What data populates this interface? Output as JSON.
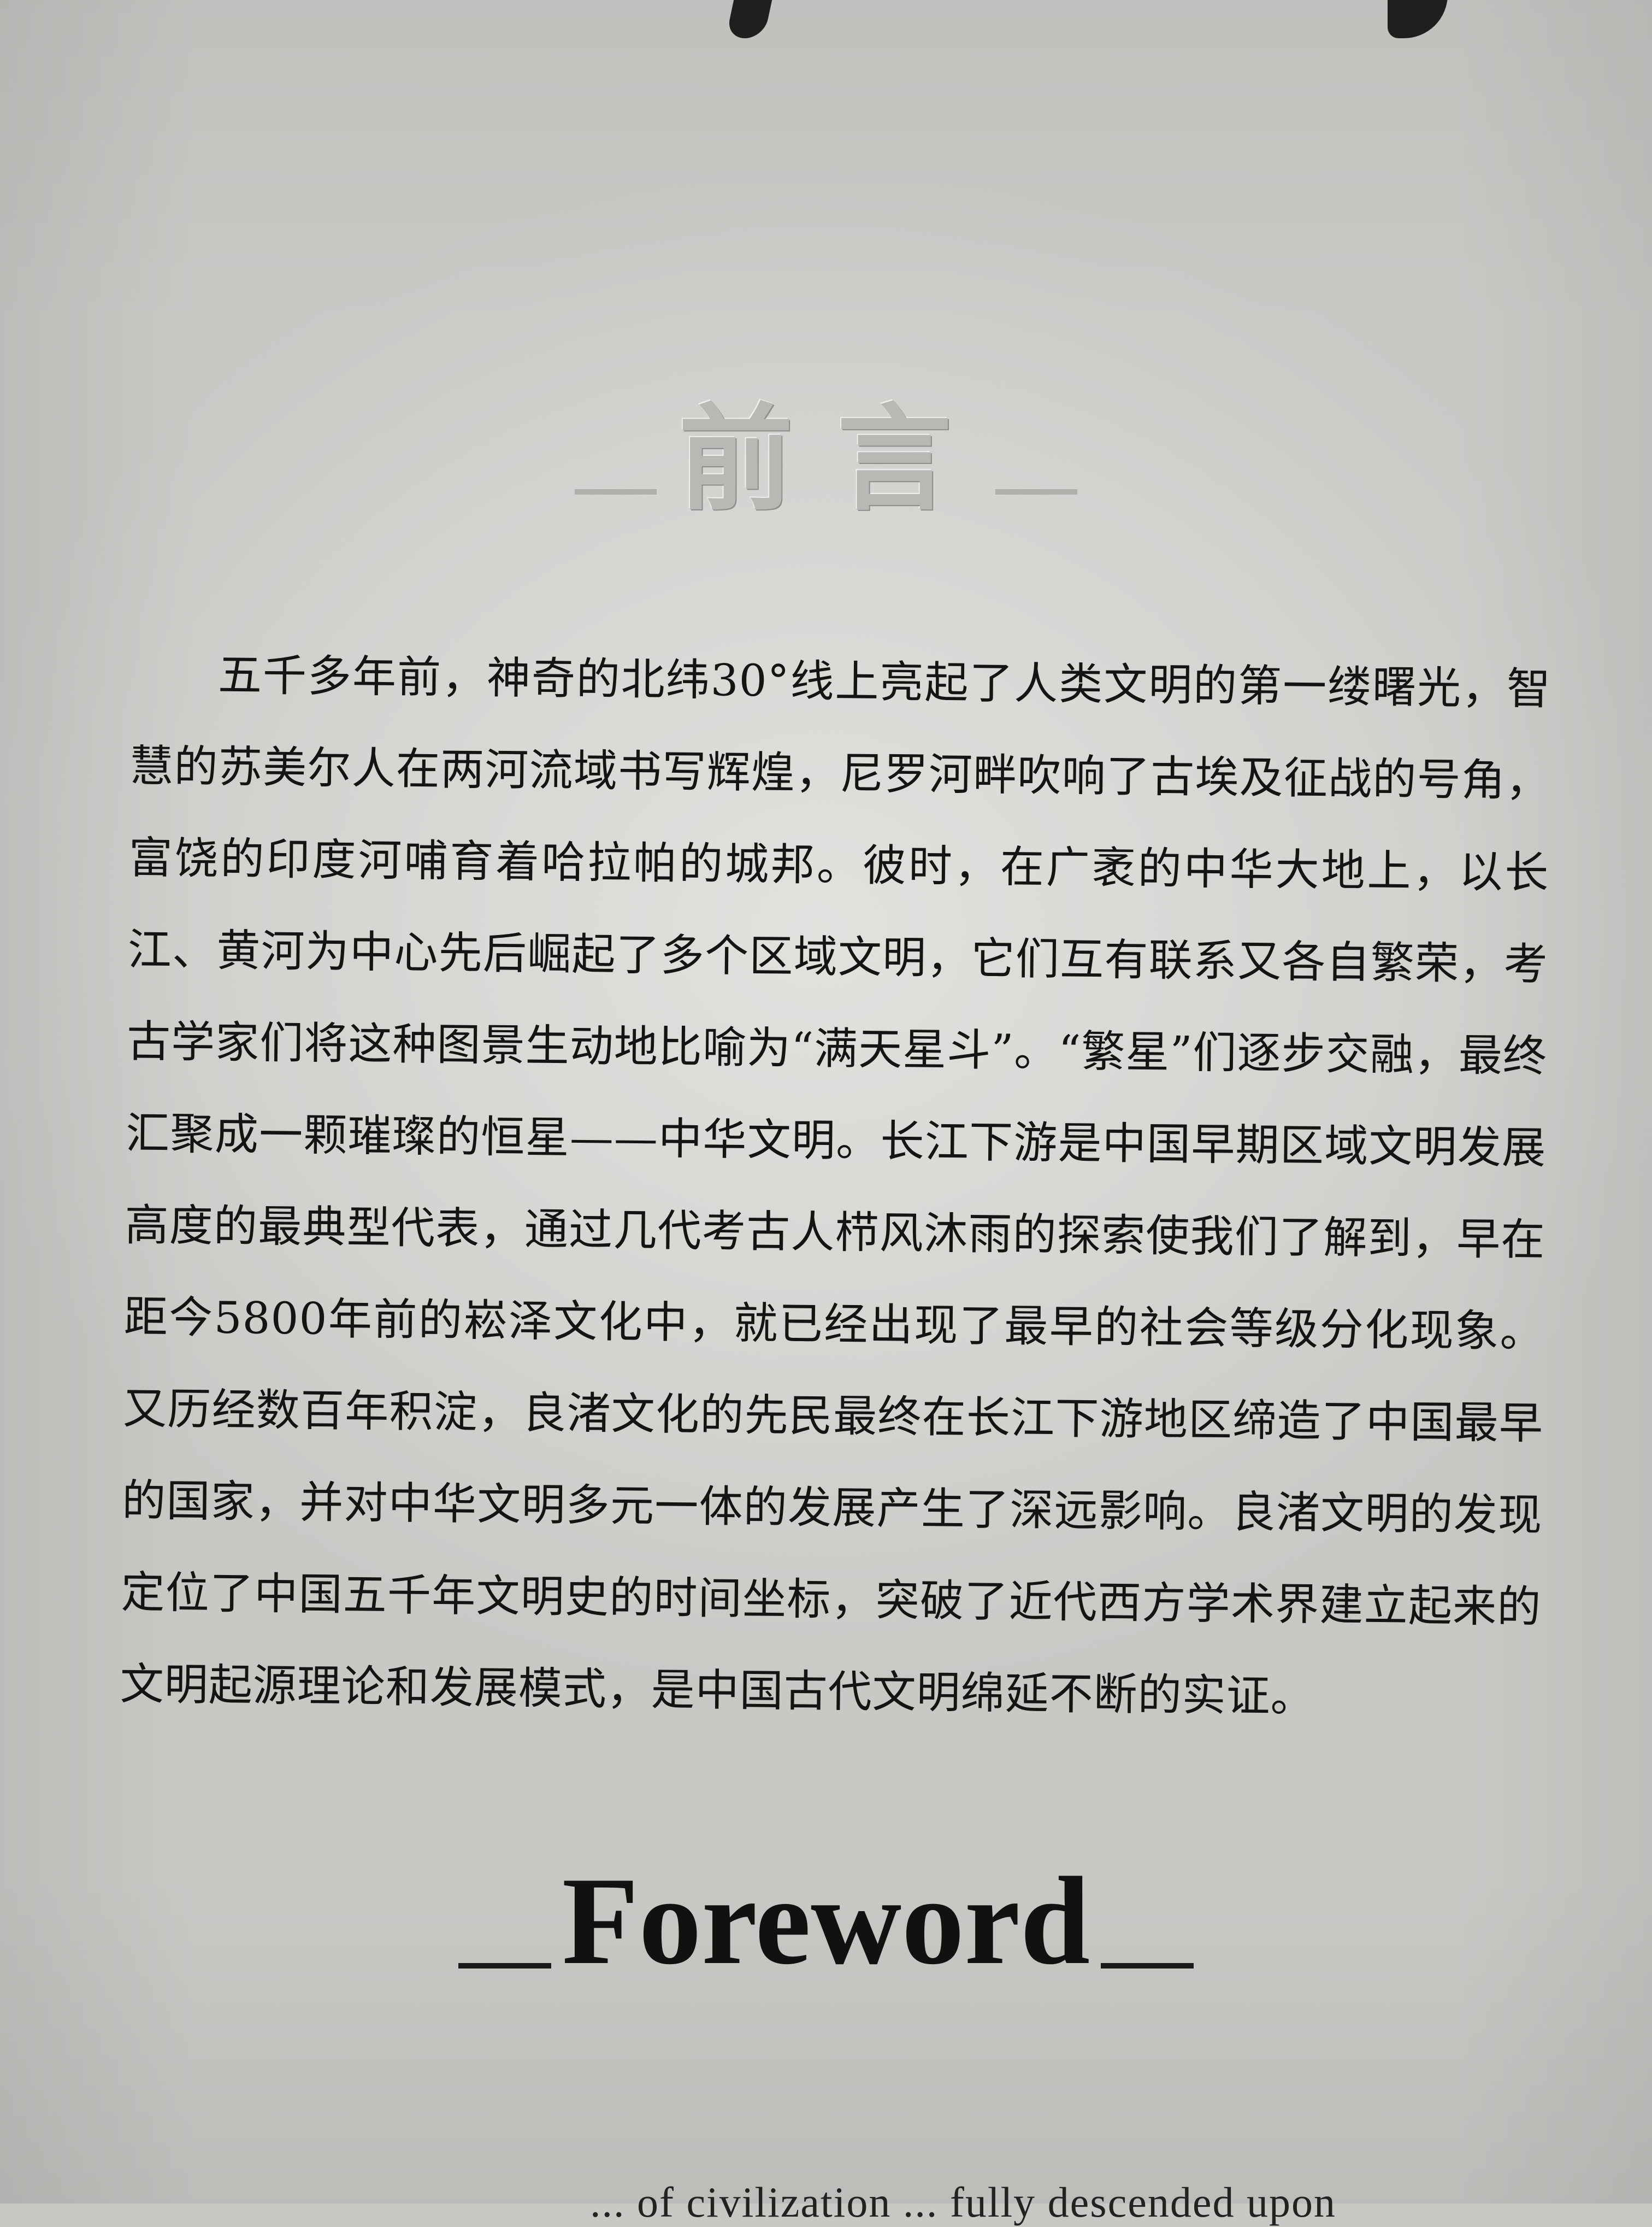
{
  "title_cn": "前言",
  "paragraph_cn": "五千多年前，神奇的北纬30°线上亮起了人类文明的第一缕曙光，智慧的苏美尔人在两河流域书写辉煌，尼罗河畔吹响了古埃及征战的号角，富饶的印度河哺育着哈拉帕的城邦。彼时，在广袤的中华大地上，以长江、黄河为中心先后崛起了多个区域文明，它们互有联系又各自繁荣，考古学家们将这种图景生动地比喻为“满天星斗”。“繁星”们逐步交融，最终汇聚成一颗璀璨的恒星——中华文明。长江下游是中国早期区域文明发展高度的最典型代表，通过几代考古人栉风沐雨的探索使我们了解到，早在距今5800年前的崧泽文化中，就已经出现了最早的社会等级分化现象。又历经数百年积淀，良渚文化的先民最终在长江下游地区缔造了中国最早的国家，并对中华文明多元一体的发展产生了深远影响。良渚文明的发现定位了中国五千年文明史的时间坐标，突破了近代西方学术界建立起来的文明起源理论和发展模式，是中国古代文明绵延不断的实证。",
  "title_en": "Foreword",
  "partial_text_en": "... of civilization ... fully descended upon"
}
